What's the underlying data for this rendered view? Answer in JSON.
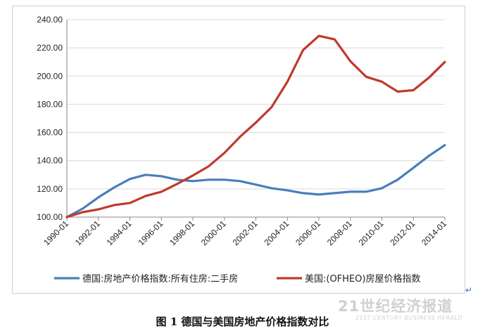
{
  "caption": "图 1  德国与美国房地产价格指数对比",
  "return_mark": "↵",
  "watermark": {
    "main": "21世纪经济报道",
    "sub": "21ST CENTURY BUSINESS HERALD"
  },
  "chart_data": {
    "type": "line",
    "title": "",
    "xlabel": "",
    "ylabel": "",
    "ylim": [
      100,
      240
    ],
    "yticks": [
      "100.00",
      "120.00",
      "140.00",
      "160.00",
      "180.00",
      "200.00",
      "220.00",
      "240.00"
    ],
    "categories": [
      "1990-01",
      "1992-01",
      "1994-01",
      "1996-01",
      "1998-01",
      "2000-01",
      "2002-01",
      "2004-01",
      "2006-01",
      "2008-01",
      "2010-01",
      "2012-01",
      "2014-01"
    ],
    "x": [
      1990,
      1991,
      1992,
      1993,
      1994,
      1995,
      1996,
      1997,
      1998,
      1999,
      2000,
      2001,
      2002,
      2003,
      2004,
      2005,
      2006,
      2007,
      2008,
      2009,
      2010,
      2011,
      2012,
      2013,
      2014
    ],
    "grid": "horizontal",
    "legend_position": "bottom",
    "series": [
      {
        "name": "德国:房地产价格指数:所有住房:二手房",
        "color": "#4a7ebb",
        "values": [
          100,
          106,
          114,
          121,
          127,
          130,
          129,
          126.5,
          125.5,
          126.5,
          126.5,
          125.5,
          123,
          120.5,
          119,
          117,
          116,
          117,
          118,
          118,
          120.5,
          126.5,
          135,
          143.5,
          151
        ]
      },
      {
        "name": "美国:(OFHEO)房屋价格指数",
        "color": "#c0392b",
        "values": [
          100,
          103.5,
          105.5,
          108.5,
          110,
          115,
          118,
          123.5,
          129.5,
          136,
          145.5,
          157,
          167,
          178,
          196,
          218.5,
          228.5,
          226,
          210.5,
          199.5,
          196,
          189,
          190,
          199,
          210
        ]
      }
    ]
  }
}
